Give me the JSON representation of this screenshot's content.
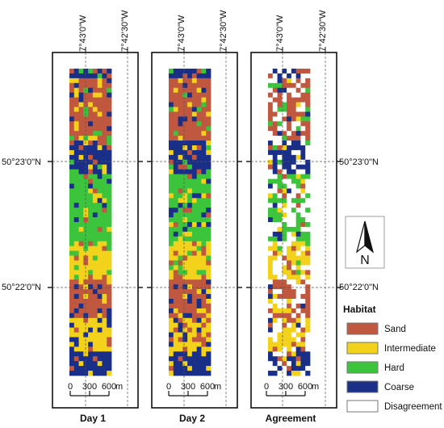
{
  "colors": {
    "sand": "#c0573f",
    "intermediate": "#f2d21a",
    "hard": "#3cc43c",
    "coarse": "#1a2f87",
    "disagreement": "#ffffff",
    "frame": "#111111"
  },
  "coordinates": {
    "lon_left": "7°43'0\"W",
    "lon_right": "7°42'30\"W",
    "lat_top": "50°23'0\"N",
    "lat_bottom": "50°22'0\"N"
  },
  "panels": [
    {
      "key": "day1",
      "title": "Day 1"
    },
    {
      "key": "day2",
      "title": "Day 2"
    },
    {
      "key": "agreement",
      "title": "Agreement"
    }
  ],
  "scale_bar": {
    "ticks": [
      "0",
      "300",
      "600"
    ],
    "unit": "m"
  },
  "north_arrow": {
    "label": "N"
  },
  "legend": {
    "title": "Habitat",
    "items": [
      {
        "label": "Sand",
        "color": "#c0573f"
      },
      {
        "label": "Intermediate",
        "color": "#f2d21a"
      },
      {
        "label": "Hard",
        "color": "#3cc43c"
      },
      {
        "label": "Coarse",
        "color": "#1a2f87"
      },
      {
        "label": "Disagreement",
        "color": "#ffffff"
      }
    ]
  }
}
